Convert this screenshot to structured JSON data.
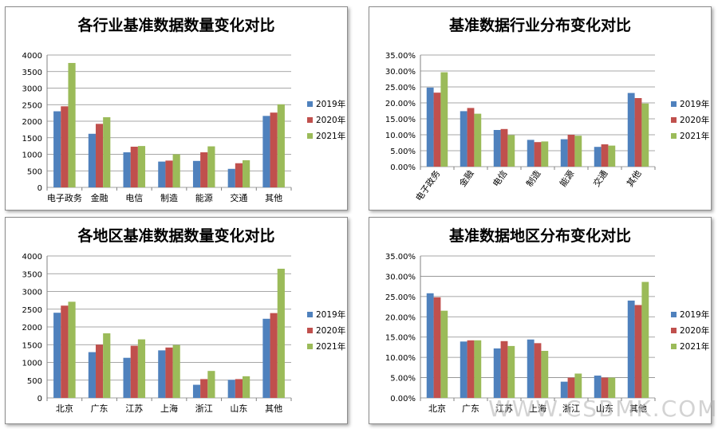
{
  "colors": {
    "2019": "#4F81BD",
    "2020": "#C0504D",
    "2021": "#9BBB59"
  },
  "watermark": "WWW.CSBMK.COM",
  "chart_data": [
    {
      "type": "bar",
      "title": "各行业基准数据数量变化对比",
      "categories": [
        "电子政务",
        "金融",
        "电信",
        "制造",
        "能源",
        "交通",
        "其他"
      ],
      "ylim": [
        0,
        4000
      ],
      "yticks": [
        "0",
        "500",
        "1000",
        "1500",
        "2000",
        "2500",
        "3000",
        "3500",
        "4000"
      ],
      "legend": "right",
      "series": [
        {
          "name": "2019年",
          "values": [
            2300,
            1620,
            1060,
            780,
            800,
            560,
            2160
          ]
        },
        {
          "name": "2020年",
          "values": [
            2450,
            1920,
            1230,
            810,
            1060,
            730,
            2260
          ]
        },
        {
          "name": "2021年",
          "values": [
            3760,
            2120,
            1250,
            1000,
            1240,
            820,
            2510
          ]
        }
      ]
    },
    {
      "type": "bar",
      "title": "基准数据行业分布变化对比",
      "categories": [
        "电子政务",
        "金融",
        "电信",
        "制造",
        "能源",
        "交通",
        "其他"
      ],
      "ylim": [
        0,
        0.35
      ],
      "yticks": [
        "0.00%",
        "5.00%",
        "10.00%",
        "15.00%",
        "20.00%",
        "25.00%",
        "30.00%",
        "35.00%"
      ],
      "legend": "right",
      "rotated_xlabels": true,
      "series": [
        {
          "name": "2019年",
          "values": [
            0.248,
            0.174,
            0.115,
            0.084,
            0.086,
            0.062,
            0.231
          ]
        },
        {
          "name": "2020年",
          "values": [
            0.232,
            0.184,
            0.118,
            0.077,
            0.1,
            0.07,
            0.215
          ]
        },
        {
          "name": "2021年",
          "values": [
            0.296,
            0.166,
            0.099,
            0.079,
            0.097,
            0.066,
            0.198
          ]
        }
      ]
    },
    {
      "type": "bar",
      "title": "各地区基准数据数量变化对比",
      "categories": [
        "北京",
        "广东",
        "江苏",
        "上海",
        "浙江",
        "山东",
        "其他"
      ],
      "ylim": [
        0,
        4000
      ],
      "yticks": [
        "0",
        "500",
        "1000",
        "1500",
        "2000",
        "2500",
        "3000",
        "3500",
        "4000"
      ],
      "legend": "right",
      "series": [
        {
          "name": "2019年",
          "values": [
            2400,
            1290,
            1130,
            1340,
            370,
            510,
            2230
          ]
        },
        {
          "name": "2020年",
          "values": [
            2600,
            1500,
            1470,
            1420,
            530,
            530,
            2390
          ]
        },
        {
          "name": "2021年",
          "values": [
            2710,
            1820,
            1650,
            1490,
            760,
            610,
            3640
          ]
        }
      ]
    },
    {
      "type": "bar",
      "title": "基准数据地区分布变化对比",
      "categories": [
        "北京",
        "广东",
        "江苏",
        "上海",
        "浙江",
        "山东",
        "其他"
      ],
      "ylim": [
        0,
        0.35
      ],
      "yticks": [
        "0.00%",
        "5.00%",
        "10.00%",
        "15.00%",
        "20.00%",
        "25.00%",
        "30.00%",
        "35.00%"
      ],
      "legend": "right",
      "series": [
        {
          "name": "2019年",
          "values": [
            0.258,
            0.139,
            0.122,
            0.144,
            0.04,
            0.055,
            0.24
          ]
        },
        {
          "name": "2020年",
          "values": [
            0.248,
            0.142,
            0.14,
            0.135,
            0.05,
            0.05,
            0.229
          ]
        },
        {
          "name": "2021年",
          "values": [
            0.215,
            0.142,
            0.128,
            0.116,
            0.06,
            0.05,
            0.286
          ]
        }
      ]
    }
  ]
}
